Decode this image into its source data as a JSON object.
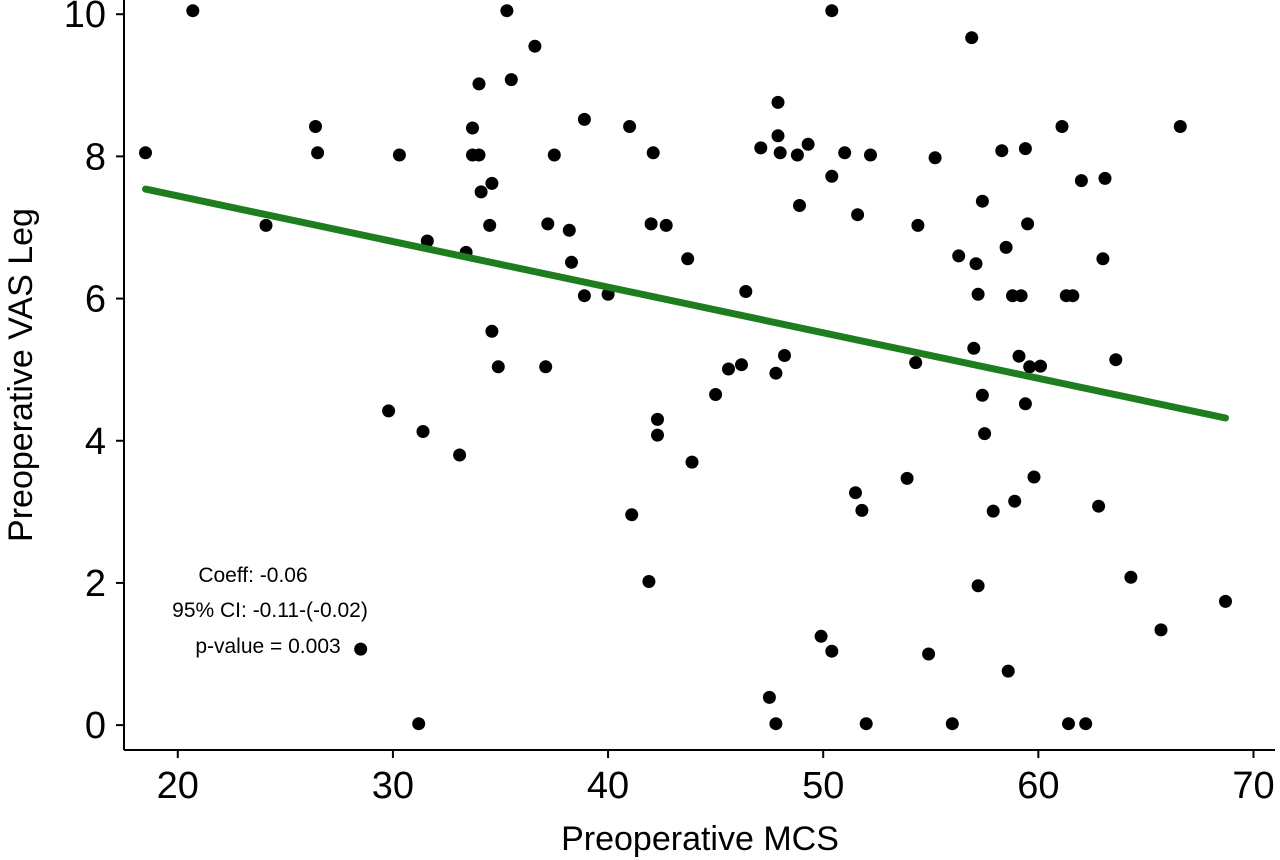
{
  "chart_data": {
    "type": "scatter",
    "title": "",
    "xlabel": "Preoperative MCS",
    "ylabel": "Preoperative VAS Leg",
    "xlim": [
      17.5,
      71
    ],
    "ylim": [
      -0.35,
      10.2
    ],
    "xticks": [
      20,
      30,
      40,
      50,
      60,
      70
    ],
    "yticks": [
      0,
      2,
      4,
      6,
      8,
      10
    ],
    "grid": false,
    "legend": "none",
    "colors": {
      "points": "#000000",
      "fit_line": "#1e7d1e",
      "axis": "#000000"
    },
    "annotations": [
      "Coeff: -0.06",
      "95% CI: -0.11-(-0.02)",
      "p-value = 0.003"
    ],
    "fit_line": {
      "x": [
        18.5,
        68.7
      ],
      "y": [
        7.54,
        4.32
      ]
    },
    "points": [
      [
        18.5,
        8.05
      ],
      [
        20.7,
        10.05
      ],
      [
        24.1,
        7.03
      ],
      [
        26.4,
        8.42
      ],
      [
        26.5,
        8.05
      ],
      [
        28.5,
        1.07
      ],
      [
        29.8,
        4.42
      ],
      [
        30.3,
        8.02
      ],
      [
        31.2,
        0.02
      ],
      [
        31.4,
        4.13
      ],
      [
        31.6,
        6.81
      ],
      [
        33.1,
        3.8
      ],
      [
        33.4,
        6.65
      ],
      [
        33.7,
        8.4
      ],
      [
        33.7,
        8.02
      ],
      [
        34.0,
        9.02
      ],
      [
        34.0,
        8.02
      ],
      [
        34.1,
        7.5
      ],
      [
        34.5,
        7.03
      ],
      [
        34.6,
        5.54
      ],
      [
        34.6,
        7.62
      ],
      [
        34.9,
        5.04
      ],
      [
        35.3,
        10.05
      ],
      [
        35.5,
        9.08
      ],
      [
        36.6,
        9.55
      ],
      [
        37.1,
        5.04
      ],
      [
        37.2,
        7.05
      ],
      [
        37.5,
        8.02
      ],
      [
        38.2,
        6.96
      ],
      [
        38.3,
        6.51
      ],
      [
        38.9,
        8.52
      ],
      [
        38.9,
        6.04
      ],
      [
        40.0,
        6.06
      ],
      [
        41.0,
        8.42
      ],
      [
        41.1,
        2.96
      ],
      [
        41.9,
        2.02
      ],
      [
        42.0,
        7.05
      ],
      [
        42.1,
        8.05
      ],
      [
        42.3,
        4.3
      ],
      [
        42.3,
        4.08
      ],
      [
        42.7,
        7.03
      ],
      [
        43.7,
        6.56
      ],
      [
        43.9,
        3.7
      ],
      [
        45.0,
        4.65
      ],
      [
        45.6,
        5.01
      ],
      [
        46.2,
        5.07
      ],
      [
        46.4,
        6.1
      ],
      [
        47.1,
        8.12
      ],
      [
        47.5,
        0.39
      ],
      [
        47.8,
        0.02
      ],
      [
        47.8,
        4.95
      ],
      [
        47.9,
        8.76
      ],
      [
        47.9,
        8.29
      ],
      [
        48.0,
        8.05
      ],
      [
        48.2,
        5.2
      ],
      [
        48.8,
        8.02
      ],
      [
        48.9,
        7.31
      ],
      [
        49.3,
        8.17
      ],
      [
        49.9,
        1.25
      ],
      [
        50.4,
        1.04
      ],
      [
        50.4,
        7.72
      ],
      [
        50.4,
        10.05
      ],
      [
        51.0,
        8.05
      ],
      [
        51.5,
        3.27
      ],
      [
        51.6,
        7.18
      ],
      [
        51.8,
        3.02
      ],
      [
        52.0,
        0.02
      ],
      [
        52.2,
        8.02
      ],
      [
        53.9,
        3.47
      ],
      [
        54.3,
        5.1
      ],
      [
        54.4,
        7.03
      ],
      [
        54.9,
        1.0
      ],
      [
        55.2,
        7.98
      ],
      [
        56.0,
        0.02
      ],
      [
        56.3,
        6.6
      ],
      [
        56.9,
        9.67
      ],
      [
        57.0,
        5.3
      ],
      [
        57.1,
        6.49
      ],
      [
        57.2,
        1.96
      ],
      [
        57.2,
        6.06
      ],
      [
        57.4,
        7.37
      ],
      [
        57.4,
        4.64
      ],
      [
        57.5,
        4.1
      ],
      [
        57.9,
        3.01
      ],
      [
        58.3,
        8.08
      ],
      [
        58.5,
        6.72
      ],
      [
        58.6,
        0.76
      ],
      [
        58.8,
        6.04
      ],
      [
        58.9,
        3.15
      ],
      [
        59.1,
        5.19
      ],
      [
        59.2,
        6.04
      ],
      [
        59.4,
        4.52
      ],
      [
        59.4,
        8.11
      ],
      [
        59.5,
        7.05
      ],
      [
        59.6,
        5.04
      ],
      [
        59.8,
        3.49
      ],
      [
        60.1,
        5.05
      ],
      [
        61.1,
        8.42
      ],
      [
        61.3,
        6.04
      ],
      [
        61.4,
        0.02
      ],
      [
        61.6,
        6.04
      ],
      [
        62.0,
        7.66
      ],
      [
        62.2,
        0.02
      ],
      [
        62.8,
        3.08
      ],
      [
        63.0,
        6.56
      ],
      [
        63.1,
        7.69
      ],
      [
        63.6,
        5.14
      ],
      [
        64.3,
        2.08
      ],
      [
        65.7,
        1.34
      ],
      [
        66.6,
        8.42
      ],
      [
        68.7,
        1.74
      ]
    ]
  }
}
